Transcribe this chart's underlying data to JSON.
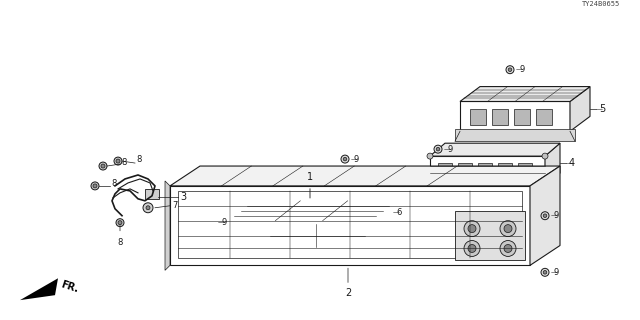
{
  "bg_color": "#ffffff",
  "lc": "#1a1a1a",
  "diagram_id": "TY24B0655",
  "figsize": [
    6.4,
    3.2
  ],
  "dpi": 100
}
